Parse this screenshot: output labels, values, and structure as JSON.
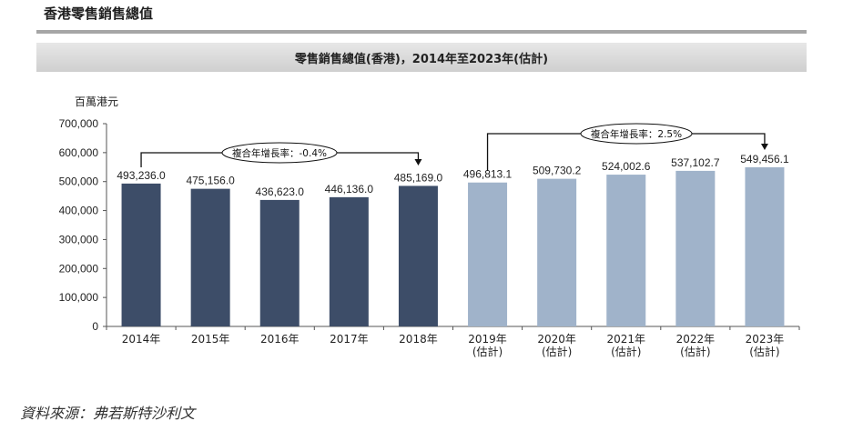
{
  "page_title": "香港零售銷售總值",
  "source": "資料來源：弗若斯特沙利文",
  "colors": {
    "historical": "#3d4d68",
    "forecast": "#a0b3ca",
    "axis": "#555555",
    "text": "#222222"
  },
  "chart_data": {
    "type": "bar",
    "title": "零售銷售總值(香港)，2014年至2023年(估計)",
    "ylabel": "百萬港元",
    "xlabel": "",
    "ylim": [
      0,
      700000
    ],
    "yticks": [
      0,
      100000,
      200000,
      300000,
      400000,
      500000,
      600000,
      700000
    ],
    "ytick_labels": [
      "0",
      "100,000",
      "200,000",
      "300,000",
      "400,000",
      "500,000",
      "600,000",
      "700,000"
    ],
    "categories": [
      "2014年",
      "2015年",
      "2016年",
      "2017年",
      "2018年",
      "2019年",
      "2020年",
      "2021年",
      "2022年",
      "2023年"
    ],
    "category_sublabels": [
      "",
      "",
      "",
      "",
      "",
      "(估計)",
      "(估計)",
      "(估計)",
      "(估計)",
      "(估計)"
    ],
    "values": [
      493236.0,
      475156.0,
      436623.0,
      446136.0,
      485169.0,
      496813.1,
      509730.2,
      524002.6,
      537102.7,
      549456.1
    ],
    "value_labels": [
      "493,236.0",
      "475,156.0",
      "436,623.0",
      "446,136.0",
      "485,169.0",
      "496,813.1",
      "509,730.2",
      "524,002.6",
      "537,102.7",
      "549,456.1"
    ],
    "forecast_start_index": 5,
    "annotations": [
      {
        "text": "複合年增長率：-0.4%",
        "from_index": 0,
        "to_index": 4
      },
      {
        "text": "複合年增長率：2.5%",
        "from_index": 5,
        "to_index": 9
      }
    ]
  }
}
